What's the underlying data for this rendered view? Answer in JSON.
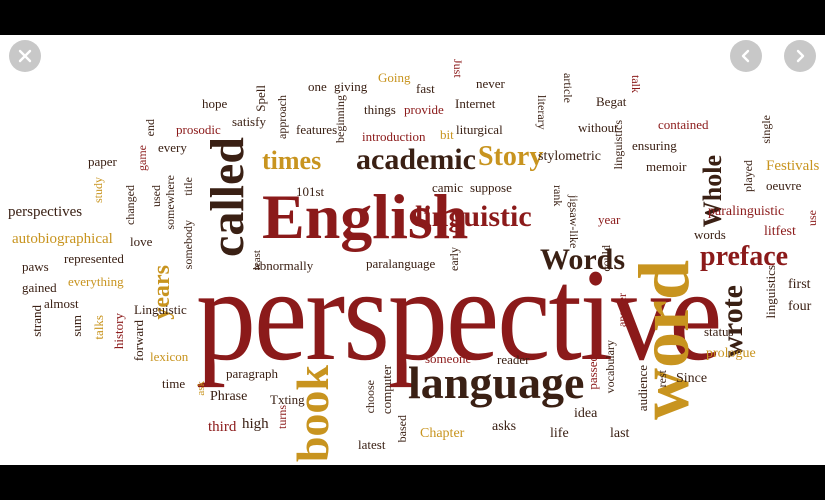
{
  "controls": {
    "close_icon": "close-icon",
    "prev_icon": "chevron-left-icon",
    "next_icon": "chevron-right-icon"
  },
  "colors": {
    "dark_red": "#8b1a1a",
    "brown": "#3a2014",
    "gold": "#c8941f",
    "control_bg": "#c8c8c8"
  },
  "words": {
    "perspective": "perspective",
    "english": "English",
    "word": "word",
    "language": "language",
    "called": "called",
    "book": "book",
    "academic": "academic",
    "linguistic": "linguistic",
    "story": "Story",
    "times": "times",
    "words": "Words",
    "preface": "preface",
    "wrote": "wrote",
    "whole": "Whole",
    "years": "years",
    "perspectives": "perspectives",
    "autobiographical": "autobiographical",
    "paws": "paws",
    "gained": "gained",
    "almost": "almost",
    "strand": "strand",
    "sum": "sum",
    "talks": "talks",
    "history": "history",
    "linguistic2": "Linguistic",
    "lexicon": "lexicon",
    "forward": "forward",
    "time": "time",
    "ask": "ask",
    "phrase": "Phrase",
    "third": "third",
    "high": "high",
    "paragraph": "paragraph",
    "txting": "Txting",
    "turns": "turns",
    "latest": "latest",
    "choose": "choose",
    "computer": "computer",
    "based": "based",
    "someone": "someone",
    "reader": "reader",
    "chapter": "Chapter",
    "asks": "asks",
    "life": "life",
    "idea": "idea",
    "last": "last",
    "audience": "audience",
    "vocabulary": "vocabulary",
    "passed": "passed",
    "answer": "answer",
    "rest": "rest",
    "since": "Since",
    "prologue": "prologue",
    "status": "status",
    "linguistics": "linguistics",
    "first": "first",
    "four": "four",
    "litfest": "litfest",
    "paralinguistic": "paralinguistic",
    "words2": "words",
    "year": "year",
    "festivals": "Festivals",
    "oeuvre": "oeuvre",
    "use": "use",
    "played": "played",
    "single": "single",
    "contained": "contained",
    "memoir": "memoir",
    "ensuring": "ensuring",
    "linguistics2": "linguistics",
    "without": "without",
    "begat": "Begat",
    "talk": "talk",
    "jigsaw_like": "jigsaw-like",
    "rank": "rank",
    "stylometric": "stylometric",
    "camic": "camic",
    "suppose": "suppose",
    "literary": "literary",
    "article": "article",
    "internet": "Internet",
    "never": "never",
    "fast": "fast",
    "just": "Just",
    "going": "Going",
    "giving": "giving",
    "one": "one",
    "things": "things",
    "provide": "provide",
    "introduction": "introduction",
    "bit": "bit",
    "liturgical": "liturgical",
    "features": "features",
    "beginning": "beginning",
    "approach": "approach",
    "spell": "Spell",
    "satisfy": "satisfy",
    "hope": "hope",
    "prosodic": "prosodic",
    "every": "every",
    "end": "end",
    "game": "game",
    "paper": "paper",
    "study": "study",
    "changed": "changed",
    "used": "used",
    "love": "love",
    "somewhere": "somewhere",
    "title": "title",
    "somebody": "somebody",
    "ten": "101st",
    "represented": "represented",
    "everything": "everything",
    "abnormally": "abnormally",
    "least": "least",
    "paralanguage": "paralanguage",
    "early": "early",
    "could": "could"
  }
}
